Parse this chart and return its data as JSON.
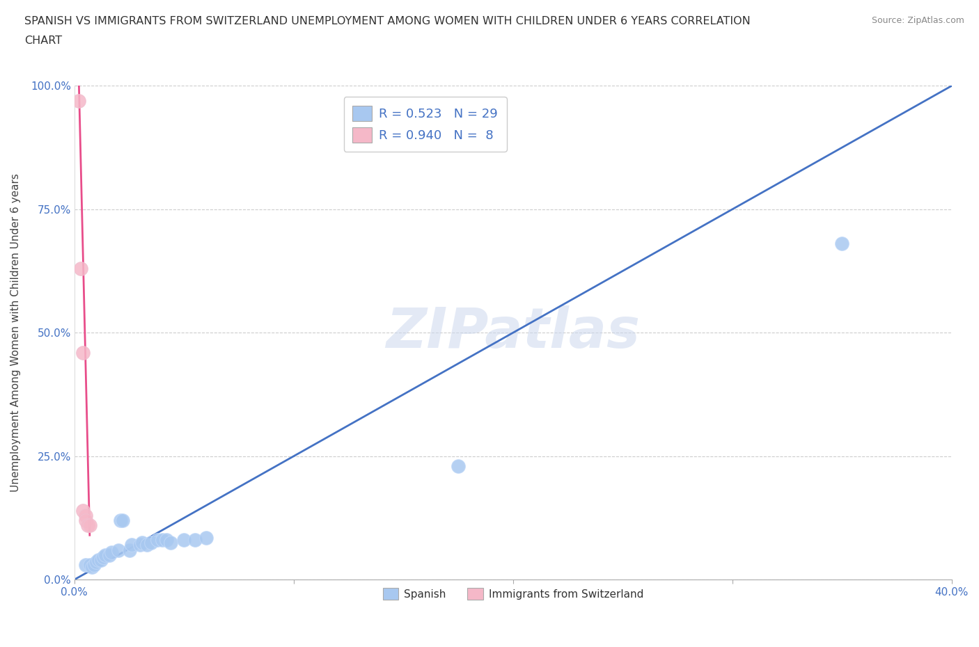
{
  "title": "SPANISH VS IMMIGRANTS FROM SWITZERLAND UNEMPLOYMENT AMONG WOMEN WITH CHILDREN UNDER 6 YEARS CORRELATION\nCHART",
  "source": "Source: ZipAtlas.com",
  "ylabel": "Unemployment Among Women with Children Under 6 years",
  "xlim": [
    0.0,
    0.4
  ],
  "ylim": [
    0.0,
    1.0
  ],
  "xticks": [
    0.0,
    0.1,
    0.2,
    0.3,
    0.4
  ],
  "xtick_labels": [
    "0.0%",
    "",
    "",
    "",
    "40.0%"
  ],
  "yticks": [
    0.0,
    0.25,
    0.5,
    0.75,
    1.0
  ],
  "ytick_labels": [
    "0.0%",
    "25.0%",
    "50.0%",
    "75.0%",
    "100.0%"
  ],
  "spanish_x": [
    0.005,
    0.007,
    0.008,
    0.009,
    0.01,
    0.011,
    0.012,
    0.013,
    0.014,
    0.016,
    0.017,
    0.02,
    0.021,
    0.022,
    0.025,
    0.026,
    0.03,
    0.031,
    0.033,
    0.035,
    0.038,
    0.04,
    0.042,
    0.044,
    0.05,
    0.055,
    0.06,
    0.175,
    0.35
  ],
  "spanish_y": [
    0.03,
    0.03,
    0.025,
    0.03,
    0.035,
    0.04,
    0.04,
    0.045,
    0.05,
    0.05,
    0.055,
    0.06,
    0.12,
    0.12,
    0.06,
    0.07,
    0.07,
    0.075,
    0.07,
    0.075,
    0.08,
    0.08,
    0.08,
    0.075,
    0.08,
    0.08,
    0.085,
    0.23,
    0.68
  ],
  "swiss_x": [
    0.002,
    0.003,
    0.004,
    0.004,
    0.005,
    0.005,
    0.006,
    0.007
  ],
  "swiss_y": [
    0.97,
    0.63,
    0.46,
    0.14,
    0.13,
    0.12,
    0.11,
    0.11
  ],
  "spanish_color": "#a8c8f0",
  "swiss_color": "#f5b8c8",
  "spanish_line_color": "#4472c4",
  "swiss_line_color": "#e84d8a",
  "r_spanish": 0.523,
  "n_spanish": 29,
  "r_swiss": 0.94,
  "n_swiss": 8,
  "background_color": "#ffffff",
  "watermark": "ZIPatlas",
  "grid_color": "#cccccc",
  "blue_line_x": [
    0.0,
    0.4
  ],
  "blue_line_y": [
    0.0,
    1.0
  ],
  "pink_line_x": [
    0.002,
    0.007
  ],
  "pink_line_y": [
    1.02,
    0.09
  ]
}
